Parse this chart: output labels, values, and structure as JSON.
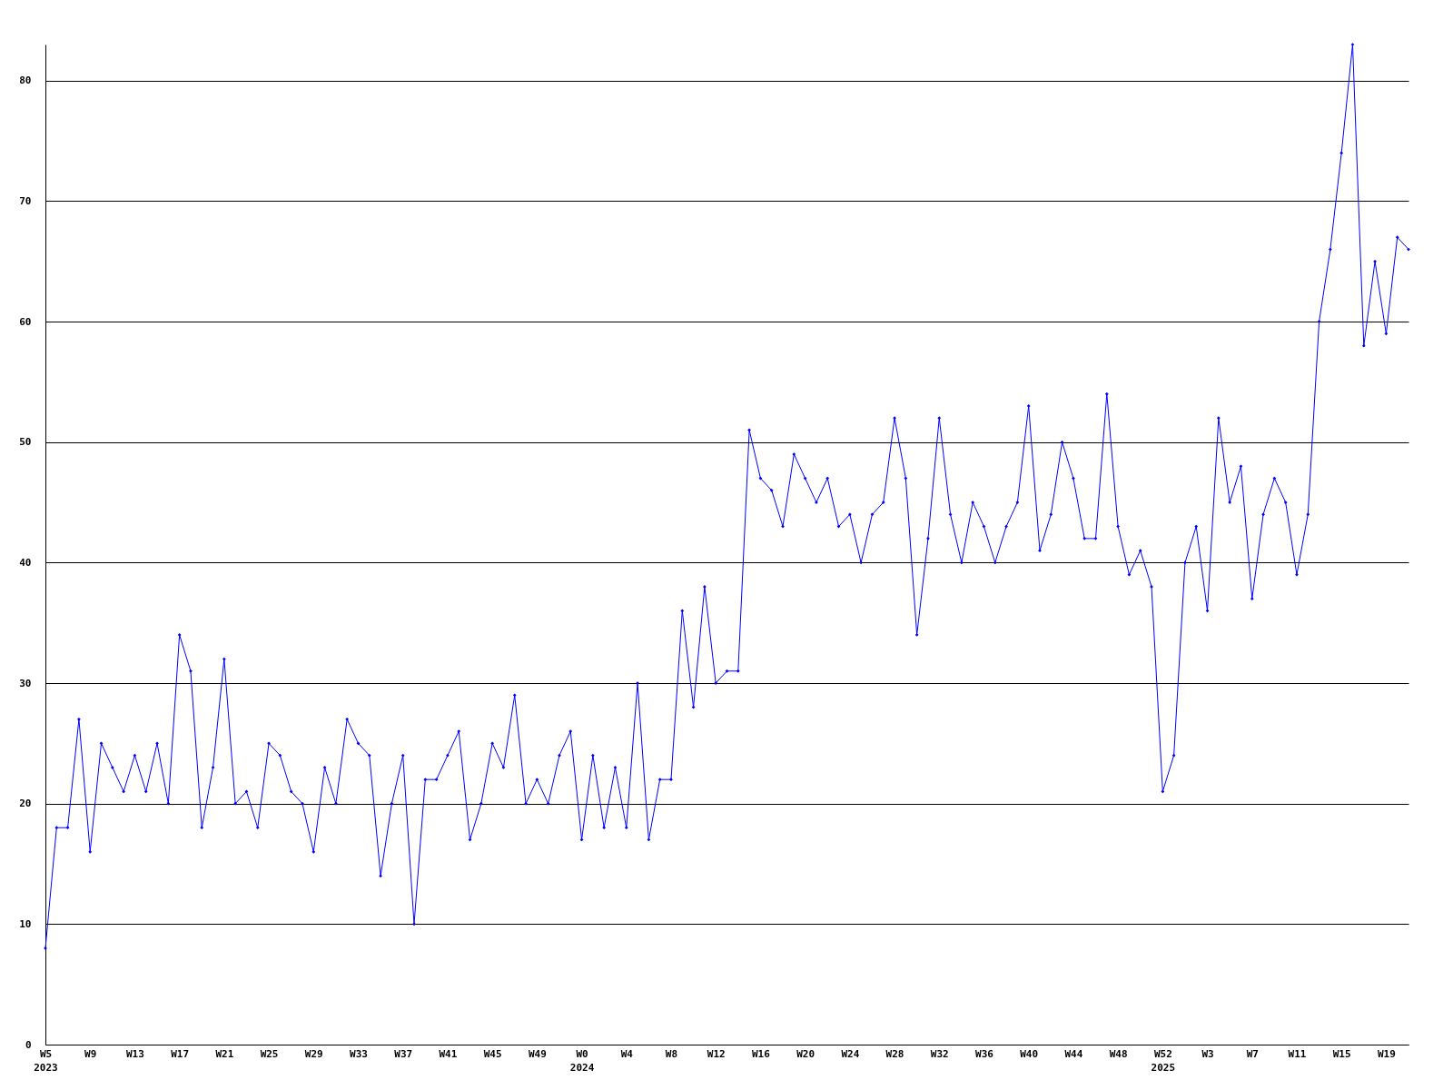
{
  "chart_data": {
    "type": "line",
    "categories": [
      "W5\n2023",
      null,
      null,
      null,
      "W9",
      null,
      null,
      null,
      "W13",
      null,
      null,
      null,
      "W17",
      null,
      null,
      null,
      "W21",
      null,
      null,
      null,
      "W25",
      null,
      null,
      null,
      "W29",
      null,
      null,
      null,
      "W33",
      null,
      null,
      null,
      "W37",
      null,
      null,
      null,
      "W41",
      null,
      null,
      null,
      "W45",
      null,
      null,
      null,
      "W49",
      null,
      null,
      null,
      "W0\n2024",
      null,
      null,
      null,
      "W4",
      null,
      null,
      null,
      "W8",
      null,
      null,
      null,
      "W12",
      null,
      null,
      null,
      "W16",
      null,
      null,
      null,
      "W20",
      null,
      null,
      null,
      "W24",
      null,
      null,
      null,
      "W28",
      null,
      null,
      null,
      "W32",
      null,
      null,
      null,
      "W36",
      null,
      null,
      null,
      "W40",
      null,
      null,
      null,
      "W44",
      null,
      null,
      null,
      "W48",
      null,
      null,
      null,
      "W52\n2025",
      null,
      null,
      null,
      "W3",
      null,
      null,
      null,
      "W7",
      null,
      null,
      null,
      "W11",
      null,
      null,
      null,
      "W15",
      null,
      null,
      null,
      "W19",
      null,
      null
    ],
    "series": [
      {
        "color": "#0000ff",
        "values": [
          8,
          18,
          18,
          27,
          16,
          25,
          23,
          21,
          24,
          21,
          25,
          20,
          34,
          31,
          18,
          23,
          32,
          20,
          21,
          18,
          25,
          24,
          21,
          20,
          16,
          23,
          20,
          27,
          25,
          24,
          14,
          20,
          24,
          10,
          22,
          22,
          24,
          26,
          17,
          20,
          25,
          23,
          29,
          20,
          22,
          20,
          24,
          26,
          17,
          24,
          18,
          23,
          18,
          30,
          17,
          22,
          22,
          36,
          28,
          38,
          30,
          31,
          31,
          51,
          47,
          46,
          43,
          49,
          47,
          45,
          47,
          43,
          44,
          40,
          44,
          45,
          52,
          47,
          34,
          42,
          52,
          44,
          40,
          45,
          43,
          40,
          43,
          45,
          53,
          41,
          44,
          50,
          47,
          42,
          42,
          54,
          43,
          39,
          41,
          38,
          21,
          24,
          40,
          43,
          36,
          52,
          45,
          48,
          37,
          44,
          47,
          45,
          39,
          44,
          60,
          66,
          74,
          83,
          58,
          65,
          59,
          67,
          66
        ]
      }
    ],
    "ylim": [
      0,
      83
    ],
    "yticks": [
      0,
      10,
      20,
      30,
      40,
      50,
      60,
      70,
      80
    ],
    "grid": "y",
    "marker": "diamond",
    "line_style": "solid"
  }
}
